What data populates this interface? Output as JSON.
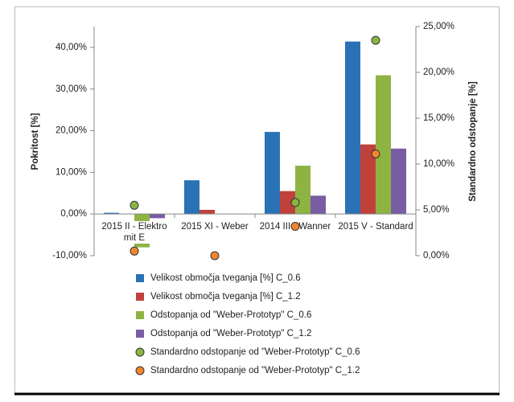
{
  "chart_data": {
    "type": "bar",
    "y_label": "Pokritost [%]",
    "y2_label": "Standardno odstopanje [%]",
    "categories": [
      "2015 II - Elektro mit E",
      "2015 XI - Weber",
      "2014 III - Wanner",
      "2015 V - Standard"
    ],
    "ylim": [
      -10,
      45
    ],
    "yticks": [
      {
        "value": -10,
        "label": "-10,00%"
      },
      {
        "value": 0,
        "label": "0,00%"
      },
      {
        "value": 10,
        "label": "10,00%"
      },
      {
        "value": 20,
        "label": "20,00%"
      },
      {
        "value": 30,
        "label": "30,00%"
      },
      {
        "value": 40,
        "label": "40,00%"
      }
    ],
    "y2lim": [
      0,
      25
    ],
    "y2ticks": [
      {
        "value": 0,
        "label": "0,00%"
      },
      {
        "value": 5,
        "label": "5,00%"
      },
      {
        "value": 10,
        "label": "10,00%"
      },
      {
        "value": 15,
        "label": "15,00%"
      },
      {
        "value": 20,
        "label": "20,00%"
      },
      {
        "value": 25,
        "label": "25,00%"
      }
    ],
    "legend": "bottom",
    "series": [
      {
        "name": "Velikost območja tveganja [%] C_0.6",
        "type": "bar",
        "color": "#2a72b5",
        "values": [
          0.3,
          8.1,
          19.7,
          41.4
        ]
      },
      {
        "name": "Velikost območja tveganja [%] C_1.2",
        "type": "bar",
        "color": "#c0413b",
        "values": [
          0,
          1.0,
          5.5,
          16.7
        ]
      },
      {
        "name": "Odstopanja od \"Weber-Prototyp\" C_0.6",
        "type": "bar",
        "color": "#8db443",
        "values": [
          -8,
          0,
          11.6,
          33.3
        ]
      },
      {
        "name": "Odstopanja od \"Weber-Prototyp\" C_1.2",
        "type": "bar",
        "color": "#7a5ca3",
        "values": [
          -1,
          0,
          4.4,
          15.7
        ]
      },
      {
        "name": "Standardno odstopanje od \"Weber-Prototyp\" C_0.6",
        "type": "scatter",
        "axis": "y2",
        "color": "#8db443",
        "values": [
          5.5,
          null,
          5.8,
          23.5
        ]
      },
      {
        "name": "Standardno odstopanje od \"Weber-Prototyp\" C_1.2",
        "type": "scatter",
        "axis": "y2",
        "color": "#f0862e",
        "values": [
          0.5,
          0.0,
          3.2,
          11.1
        ]
      }
    ]
  }
}
